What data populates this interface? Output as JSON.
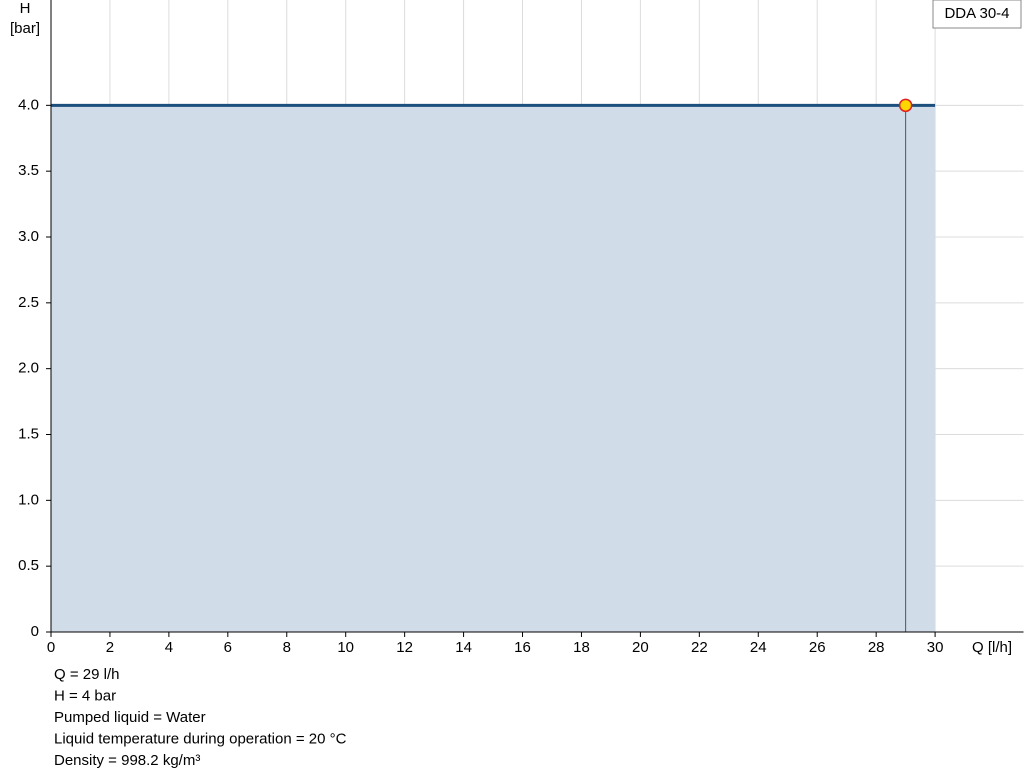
{
  "chart_data": {
    "type": "line",
    "x_label": "Q [l/h]",
    "y_label_lines": [
      "H",
      "[bar]"
    ],
    "xlim": [
      0,
      33
    ],
    "ylim": [
      0,
      4.8
    ],
    "xticks": [
      0,
      2,
      4,
      6,
      8,
      10,
      12,
      14,
      16,
      18,
      20,
      22,
      24,
      26,
      28,
      30
    ],
    "yticks": [
      0,
      0.5,
      {
        "value": 1,
        "label": "1.0"
      },
      1.5,
      {
        "value": 2,
        "label": "2.0"
      },
      2.5,
      {
        "value": 3,
        "label": "3.0"
      },
      3.5,
      {
        "value": 4,
        "label": "4.0"
      }
    ],
    "grid": true,
    "series": [
      {
        "name": "DDA 30-4",
        "color": "#1b4f7c",
        "fill": "#d0dce7",
        "x": [
          0,
          30
        ],
        "values": [
          4,
          4
        ]
      }
    ],
    "operating_point": {
      "x": 29,
      "y": 4,
      "color": "#ffd700",
      "edge": "#e02020"
    },
    "notes": [
      "Q = 29 l/h",
      "H = 4 bar",
      "Pumped liquid = Water",
      "Liquid temperature during operation = 20 °C",
      "Density = 998.2 kg/m³"
    ]
  }
}
